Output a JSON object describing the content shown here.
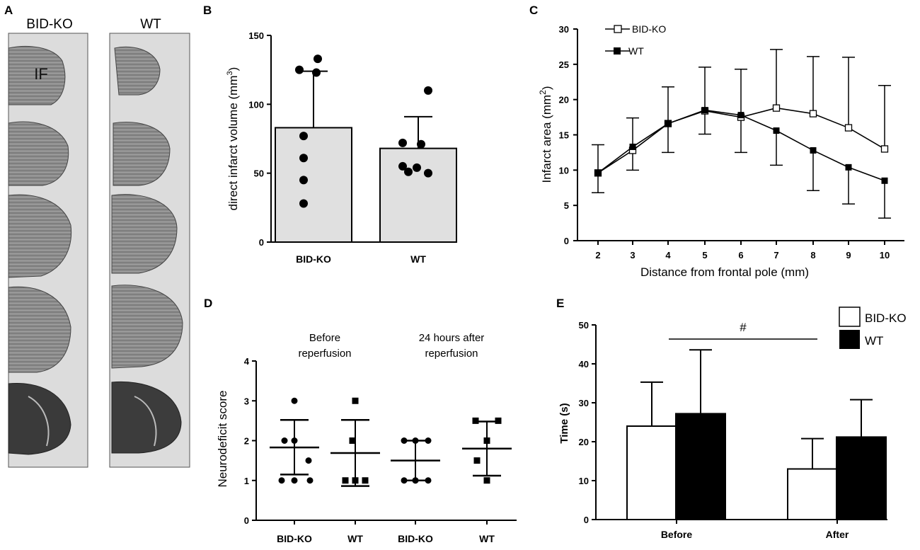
{
  "panels": {
    "a": "A",
    "b": "B",
    "c": "C",
    "d": "D",
    "e": "E"
  },
  "panel_a": {
    "columns": [
      "BID-KO",
      "WT"
    ],
    "annotation": "IF",
    "slices_per_column": 5
  },
  "chart_data": [
    {
      "id": "B",
      "type": "bar",
      "categories": [
        "BID-KO",
        "WT"
      ],
      "values": [
        83,
        68
      ],
      "errors": [
        41,
        23
      ],
      "points": [
        [
          133,
          125,
          123,
          77,
          61,
          45,
          28
        ],
        [
          110,
          72,
          71,
          55,
          54,
          51,
          50
        ]
      ],
      "ylabel_main": "direct infarct volume (mm",
      "ylabel_sup": "3",
      "ylabel_end": ")",
      "ylim": [
        0,
        150
      ],
      "yticks": [
        0,
        50,
        100,
        150
      ],
      "bar_color": "#e0e0e0"
    },
    {
      "id": "C",
      "type": "line",
      "x": [
        2,
        3,
        4,
        5,
        6,
        7,
        8,
        9,
        10
      ],
      "series": [
        {
          "name": "BID-KO",
          "marker": "open-square",
          "values": [
            9.6,
            12.8,
            16.6,
            18.4,
            17.5,
            18.8,
            18.0,
            16.0,
            13.0
          ],
          "err_up": [
            13.6,
            17.4,
            21.8,
            24.6,
            24.3,
            27.1,
            26.1,
            26.0,
            22.0
          ]
        },
        {
          "name": "WT",
          "marker": "filled-square",
          "values": [
            9.6,
            13.3,
            16.6,
            18.5,
            17.8,
            15.6,
            12.8,
            10.4,
            8.5
          ],
          "err_low": [
            6.8,
            10.0,
            12.5,
            15.1,
            12.5,
            10.7,
            7.1,
            5.2,
            3.2
          ]
        }
      ],
      "xlabel": "Distance from frontal pole (mm)",
      "ylabel_main": "Infarct area (mm",
      "ylabel_sup": "2",
      "ylabel_end": ")",
      "ylim": [
        0,
        30
      ],
      "yticks": [
        0,
        5,
        10,
        15,
        20,
        25,
        30
      ],
      "xticks": [
        "2",
        "3",
        "4",
        "5",
        "6",
        "7",
        "8",
        "9",
        "10"
      ]
    },
    {
      "id": "D",
      "type": "scatter",
      "categories": [
        "BID-KO",
        "WT",
        "BID-KO",
        "WT"
      ],
      "markers": [
        "circle",
        "square",
        "circle",
        "square"
      ],
      "means": [
        1.83,
        1.69,
        1.5,
        1.8
      ],
      "sd_upper": [
        2.52,
        2.52,
        2.0,
        2.48
      ],
      "sd_lower": [
        1.15,
        0.86,
        1.0,
        1.12
      ],
      "points": [
        [
          3.0,
          2.0,
          2.0,
          1.5,
          1.0,
          1.0,
          1.0
        ],
        [
          3.0,
          2.0,
          1.0,
          1.0,
          1.0
        ],
        [
          2.0,
          2.0,
          2.0,
          1.0,
          1.0,
          1.0,
          1.0
        ],
        [
          2.5,
          2.5,
          2.0,
          1.5,
          1.0
        ]
      ],
      "groups": [
        "Before\nreperfusion",
        "24 hours after\nreperfusion"
      ],
      "ylabel": "Neurodeficit score",
      "ylim": [
        0,
        4
      ],
      "yticks": [
        0,
        1,
        2,
        3,
        4
      ]
    },
    {
      "id": "E",
      "type": "bar",
      "categories": [
        "Before",
        "After"
      ],
      "series": [
        {
          "name": "BID-KO",
          "color": "#ffffff",
          "values": [
            24.0,
            13.0
          ],
          "errors": [
            11.3,
            7.8
          ]
        },
        {
          "name": "WT",
          "color": "#000000",
          "values": [
            27.2,
            21.2
          ],
          "errors": [
            16.4,
            9.6
          ]
        }
      ],
      "annotation": "#",
      "ylabel": "Time (s)",
      "ylim": [
        0,
        50
      ],
      "yticks": [
        0,
        10,
        20,
        30,
        40,
        50
      ]
    }
  ]
}
